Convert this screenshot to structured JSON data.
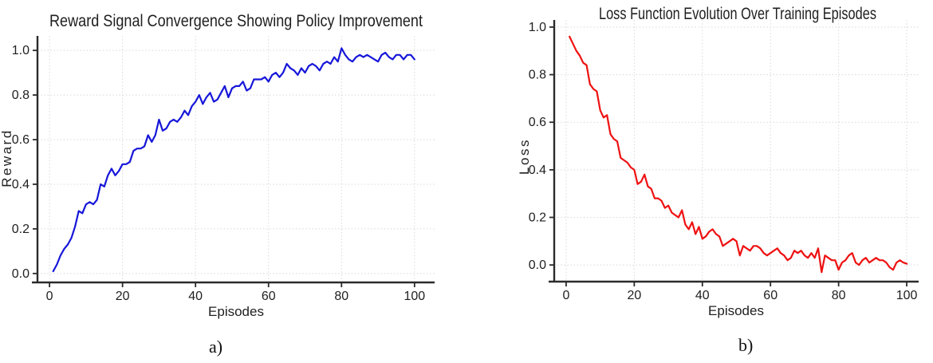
{
  "style": {
    "bg": "#ffffff",
    "text": "#1f1f1f",
    "axis": "#2b2b2b",
    "grid": "#d8d8d8",
    "reward_line": "#1616d9",
    "loss_line": "#ee1111"
  },
  "figure": {
    "caption_a": "a)",
    "caption_b": "b)"
  },
  "chart_data": [
    {
      "type": "line",
      "title": "Reward Signal Convergence Showing Policy Improvement",
      "xlabel": "Episodes",
      "ylabel": "Reward",
      "legend": "none",
      "grid": true,
      "xticks": [
        0,
        20,
        40,
        60,
        80,
        100
      ],
      "yticks": [
        0.0,
        0.2,
        0.4,
        0.6,
        0.8,
        1.0
      ],
      "xlim": [
        -3.3,
        105.5
      ],
      "ylim": [
        -0.04,
        1.065
      ],
      "series": [
        {
          "name": "reward",
          "color": "#1616d9",
          "x_start": 1,
          "values": [
            0.01,
            0.04,
            0.08,
            0.11,
            0.13,
            0.16,
            0.21,
            0.28,
            0.27,
            0.31,
            0.32,
            0.31,
            0.33,
            0.4,
            0.39,
            0.44,
            0.47,
            0.44,
            0.46,
            0.49,
            0.49,
            0.5,
            0.55,
            0.56,
            0.56,
            0.57,
            0.62,
            0.59,
            0.62,
            0.69,
            0.64,
            0.65,
            0.68,
            0.69,
            0.68,
            0.7,
            0.73,
            0.71,
            0.75,
            0.77,
            0.8,
            0.76,
            0.79,
            0.81,
            0.77,
            0.78,
            0.81,
            0.84,
            0.79,
            0.83,
            0.84,
            0.84,
            0.86,
            0.82,
            0.83,
            0.87,
            0.87,
            0.87,
            0.88,
            0.86,
            0.89,
            0.9,
            0.88,
            0.9,
            0.94,
            0.92,
            0.91,
            0.89,
            0.92,
            0.9,
            0.93,
            0.94,
            0.93,
            0.91,
            0.94,
            0.95,
            0.94,
            0.97,
            0.95,
            1.01,
            0.98,
            0.96,
            0.95,
            0.97,
            0.98,
            0.97,
            0.98,
            0.97,
            0.96,
            0.95,
            0.98,
            0.99,
            0.97,
            0.96,
            0.98,
            0.98,
            0.96,
            0.98,
            0.98,
            0.96
          ]
        }
      ]
    },
    {
      "type": "line",
      "title": "Loss Function Evolution Over Training Episodes",
      "xlabel": "Episodes",
      "ylabel": "Loss",
      "legend": "none",
      "grid": true,
      "xticks": [
        0,
        20,
        40,
        60,
        80,
        100
      ],
      "yticks": [
        0.0,
        0.2,
        0.4,
        0.6,
        0.8,
        1.0
      ],
      "xlim": [
        -3.5,
        103.5
      ],
      "ylim": [
        -0.07,
        1.03
      ],
      "series": [
        {
          "name": "loss",
          "color": "#ee1111",
          "x_start": 1,
          "values": [
            0.96,
            0.93,
            0.9,
            0.88,
            0.85,
            0.84,
            0.76,
            0.74,
            0.73,
            0.65,
            0.62,
            0.63,
            0.55,
            0.53,
            0.52,
            0.45,
            0.44,
            0.43,
            0.41,
            0.4,
            0.34,
            0.35,
            0.38,
            0.33,
            0.32,
            0.28,
            0.28,
            0.27,
            0.24,
            0.25,
            0.22,
            0.21,
            0.2,
            0.23,
            0.17,
            0.15,
            0.18,
            0.13,
            0.16,
            0.11,
            0.12,
            0.14,
            0.15,
            0.13,
            0.12,
            0.08,
            0.09,
            0.1,
            0.11,
            0.1,
            0.04,
            0.08,
            0.07,
            0.06,
            0.08,
            0.08,
            0.07,
            0.05,
            0.04,
            0.05,
            0.06,
            0.07,
            0.05,
            0.04,
            0.02,
            0.03,
            0.06,
            0.05,
            0.06,
            0.04,
            0.03,
            0.05,
            0.03,
            0.07,
            -0.03,
            0.04,
            0.03,
            0.02,
            0.02,
            -0.02,
            0.01,
            0.02,
            0.04,
            0.05,
            0.01,
            0.0,
            0.02,
            0.03,
            0.01,
            0.02,
            0.03,
            0.02,
            0.02,
            0.01,
            -0.01,
            -0.02,
            0.01,
            0.02,
            0.01,
            0.005
          ]
        }
      ]
    }
  ]
}
